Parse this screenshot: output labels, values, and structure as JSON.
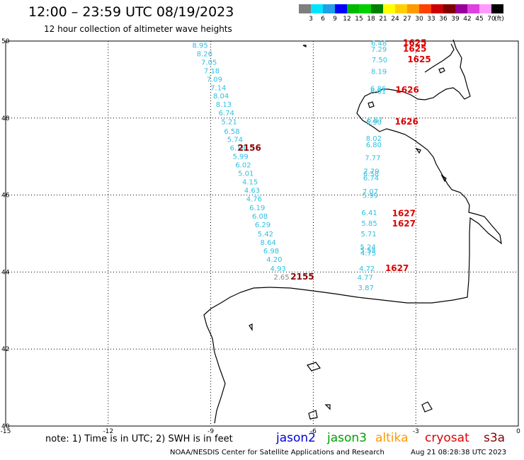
{
  "header": {
    "title": "12:00 – 23:59 UTC 08/19/2023",
    "subtitle": "12 hour collection of altimeter wave heights"
  },
  "legend": {
    "unit": "(ft)",
    "bins": [
      {
        "label": "3",
        "color": "#7f7f7f"
      },
      {
        "label": "6",
        "color": "#00e5ff"
      },
      {
        "label": "9",
        "color": "#1fa0e8"
      },
      {
        "label": "12",
        "color": "#0000ff"
      },
      {
        "label": "15",
        "color": "#00b800"
      },
      {
        "label": "18",
        "color": "#00d000"
      },
      {
        "label": "21",
        "color": "#008000"
      },
      {
        "label": "24",
        "color": "#ffff00"
      },
      {
        "label": "27",
        "color": "#ffd000"
      },
      {
        "label": "30",
        "color": "#ff9900"
      },
      {
        "label": "33",
        "color": "#ff4000"
      },
      {
        "label": "36",
        "color": "#cc0000"
      },
      {
        "label": "39",
        "color": "#800000"
      },
      {
        "label": "42",
        "color": "#990099"
      },
      {
        "label": "45",
        "color": "#e040e0"
      },
      {
        "label": "70",
        "color": "#ff99ff"
      },
      {
        "label": "",
        "color": "#000000"
      }
    ]
  },
  "axes": {
    "x_ticks": [
      "-15",
      "-12",
      "-9",
      "-6",
      "-3",
      "0"
    ],
    "y_ticks": [
      "50",
      "48",
      "46",
      "44",
      "42",
      "40"
    ],
    "xlim": [
      -15,
      0
    ],
    "ylim": [
      40,
      50
    ]
  },
  "chart_data": {
    "type": "scatter",
    "title": "12:00 – 23:59 UTC 08/19/2023",
    "xlabel": "",
    "ylabel": "",
    "xlim": [
      -15,
      0
    ],
    "ylim": [
      40,
      50
    ],
    "grid": true,
    "series": [
      {
        "name": "cryosat",
        "color_default": "#2fbfe0",
        "points": [
          {
            "x": -9.31,
            "y": 49.9,
            "value": "8.95"
          },
          {
            "x": -9.18,
            "y": 49.68,
            "value": "8.26"
          },
          {
            "x": -9.05,
            "y": 49.46,
            "value": "7.05"
          },
          {
            "x": -8.97,
            "y": 49.24,
            "value": "7.18"
          },
          {
            "x": -8.89,
            "y": 49.02,
            "value": "7.09"
          },
          {
            "x": -8.78,
            "y": 48.8,
            "value": "7.14"
          },
          {
            "x": -8.7,
            "y": 48.58,
            "value": "8.04"
          },
          {
            "x": -8.62,
            "y": 48.36,
            "value": "8.13"
          },
          {
            "x": -8.54,
            "y": 48.14,
            "value": "6.74"
          },
          {
            "x": -8.46,
            "y": 47.91,
            "value": "5.21"
          },
          {
            "x": -8.38,
            "y": 47.67,
            "value": "6.58"
          },
          {
            "x": -8.29,
            "y": 47.45,
            "value": "5.74"
          },
          {
            "x": -8.21,
            "y": 47.23,
            "value": "6.18"
          },
          {
            "x": -8.13,
            "y": 47.01,
            "value": "5.99"
          },
          {
            "x": -8.05,
            "y": 46.79,
            "value": "6.02"
          },
          {
            "x": -7.97,
            "y": 46.57,
            "value": "5.01"
          },
          {
            "x": -7.85,
            "y": 46.35,
            "value": "4.15"
          },
          {
            "x": -7.79,
            "y": 46.13,
            "value": "4.63"
          },
          {
            "x": -7.73,
            "y": 45.91,
            "value": "4.76"
          },
          {
            "x": -7.64,
            "y": 45.68,
            "value": "6.19"
          },
          {
            "x": -7.56,
            "y": 45.46,
            "value": "6.08"
          },
          {
            "x": -7.48,
            "y": 45.24,
            "value": "6.29"
          },
          {
            "x": -7.4,
            "y": 45.0,
            "value": "5.42"
          },
          {
            "x": -7.32,
            "y": 44.78,
            "value": "8.64"
          },
          {
            "x": -7.23,
            "y": 44.56,
            "value": "6.98"
          },
          {
            "x": -7.14,
            "y": 44.34,
            "value": "4.20"
          },
          {
            "x": -7.03,
            "y": 44.1,
            "value": "4.93"
          },
          {
            "x": -6.93,
            "y": 43.88,
            "value": "2.65",
            "color": "#8a8a8a"
          }
        ],
        "time_labels": [
          {
            "x": -7.87,
            "y": 47.22,
            "text": "2156",
            "color": "#8b0000"
          },
          {
            "x": -6.32,
            "y": 43.88,
            "text": "2155",
            "color": "#8b0000"
          }
        ]
      },
      {
        "name": "s3a",
        "color_default": "#2fbfe0",
        "points": [
          {
            "x": -4.08,
            "y": 49.95,
            "value": "6.48"
          },
          {
            "x": -4.08,
            "y": 49.8,
            "value": "7.29"
          },
          {
            "x": -4.06,
            "y": 49.52,
            "value": "7.50"
          },
          {
            "x": -4.08,
            "y": 49.22,
            "value": "8.19"
          },
          {
            "x": -4.1,
            "y": 48.78,
            "value": "6.86"
          },
          {
            "x": -4.1,
            "y": 48.7,
            "value": "6.61"
          },
          {
            "x": -4.2,
            "y": 47.96,
            "value": "6.87"
          },
          {
            "x": -4.23,
            "y": 47.9,
            "value": "6.90"
          },
          {
            "x": -4.23,
            "y": 47.48,
            "value": "8.02"
          },
          {
            "x": -4.23,
            "y": 47.32,
            "value": "6.80"
          },
          {
            "x": -4.26,
            "y": 46.98,
            "value": "7.77"
          },
          {
            "x": -4.3,
            "y": 46.63,
            "value": "7.79"
          },
          {
            "x": -4.31,
            "y": 46.56,
            "value": "6.58"
          },
          {
            "x": -4.31,
            "y": 46.45,
            "value": "6.74"
          },
          {
            "x": -4.33,
            "y": 46.1,
            "value": "7.07"
          },
          {
            "x": -4.33,
            "y": 46.0,
            "value": "5.99"
          },
          {
            "x": -4.36,
            "y": 45.55,
            "value": "6.41"
          },
          {
            "x": -4.36,
            "y": 45.28,
            "value": "5.85"
          },
          {
            "x": -4.38,
            "y": 45.0,
            "value": "5.71"
          },
          {
            "x": -4.4,
            "y": 44.66,
            "value": "5.24"
          },
          {
            "x": -4.4,
            "y": 44.58,
            "value": "5.55"
          },
          {
            "x": -4.39,
            "y": 44.5,
            "value": "4.75"
          },
          {
            "x": -4.43,
            "y": 44.1,
            "value": "4.72"
          },
          {
            "x": -4.48,
            "y": 43.87,
            "value": "4.77"
          },
          {
            "x": -4.46,
            "y": 43.6,
            "value": "3.87"
          }
        ],
        "time_labels": [
          {
            "x": -3.03,
            "y": 49.95,
            "text": "1625",
            "color": "#dd0000"
          },
          {
            "x": -3.03,
            "y": 49.8,
            "text": "1625",
            "color": "#dd0000"
          },
          {
            "x": -2.9,
            "y": 49.52,
            "text": "1625",
            "color": "#dd0000"
          },
          {
            "x": -3.25,
            "y": 48.73,
            "text": "1626",
            "color": "#dd0000"
          },
          {
            "x": -3.27,
            "y": 47.9,
            "text": "1626",
            "color": "#dd0000"
          },
          {
            "x": -3.35,
            "y": 45.52,
            "text": "1627",
            "color": "#dd0000"
          },
          {
            "x": -3.35,
            "y": 45.26,
            "text": "1627",
            "color": "#dd0000"
          },
          {
            "x": -3.55,
            "y": 44.1,
            "text": "1627",
            "color": "#dd0000"
          }
        ]
      }
    ]
  },
  "note": "note:  1) Time is in UTC;  2) SWH is in feet",
  "satellites": [
    {
      "name": "jason2",
      "color": "#0000dd"
    },
    {
      "name": "jason3",
      "color": "#00a000"
    },
    {
      "name": "altika",
      "color": "#ff9900"
    },
    {
      "name": "cryosat",
      "color": "#dd0000"
    },
    {
      "name": "s3a",
      "color": "#8b0000"
    }
  ],
  "footer": {
    "credit": "NOAA/NESDIS Center for Satellite Applications and Research",
    "timestamp": "Aug 21 08:28:38 UTC 2023"
  }
}
